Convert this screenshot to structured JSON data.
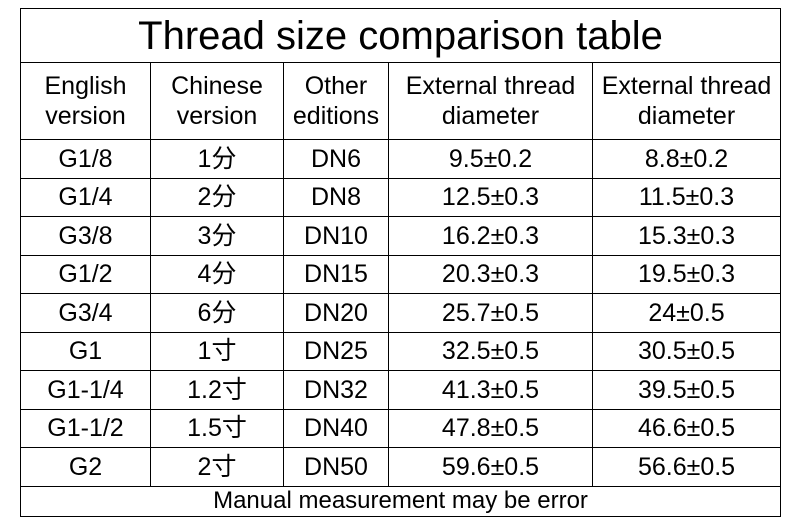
{
  "title": "Thread size comparison table",
  "table": {
    "header": [
      "English version",
      "Chinese version",
      "Other editions",
      "External thread diameter",
      "External thread diameter"
    ],
    "rows": [
      [
        "G1/8",
        "1分",
        "DN6",
        "9.5±0.2",
        "8.8±0.2"
      ],
      [
        "G1/4",
        "2分",
        "DN8",
        "12.5±0.3",
        "11.5±0.3"
      ],
      [
        "G3/8",
        "3分",
        "DN10",
        "16.2±0.3",
        "15.3±0.3"
      ],
      [
        "G1/2",
        "4分",
        "DN15",
        "20.3±0.3",
        "19.5±0.3"
      ],
      [
        "G3/4",
        "6分",
        "DN20",
        "25.7±0.5",
        "24±0.5"
      ],
      [
        "G1",
        "1寸",
        "DN25",
        "32.5±0.5",
        "30.5±0.5"
      ],
      [
        "G1-1/4",
        "1.2寸",
        "DN32",
        "41.3±0.5",
        "39.5±0.5"
      ],
      [
        "G1-1/2",
        "1.5寸",
        "DN40",
        "47.8±0.5",
        "46.6±0.5"
      ],
      [
        "G2",
        "2寸",
        "DN50",
        "59.6±0.5",
        "56.6±0.5"
      ]
    ]
  },
  "footer": "Manual measurement may be error"
}
